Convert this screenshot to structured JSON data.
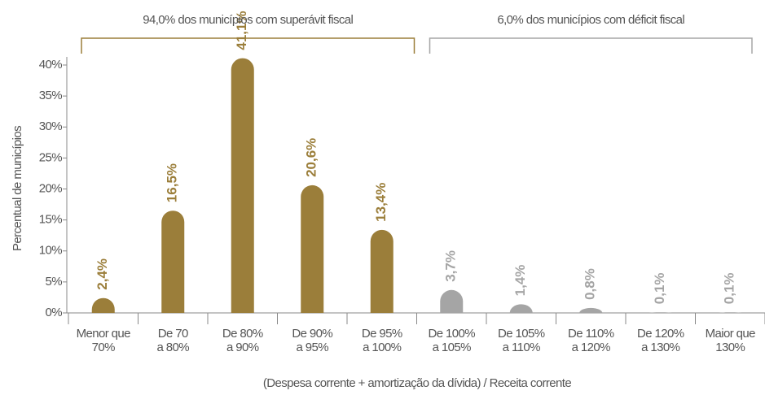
{
  "chart_data": {
    "type": "bar",
    "categories": [
      [
        "Menor que",
        "70%"
      ],
      [
        "De 70",
        "a 80%"
      ],
      [
        "De 80%",
        "a 90%"
      ],
      [
        "De 90%",
        "a 95%"
      ],
      [
        "De 95%",
        "a 100%"
      ],
      [
        "De 100%",
        "a 105%"
      ],
      [
        "De 105%",
        "a 110%"
      ],
      [
        "De 110%",
        "a 120%"
      ],
      [
        "De 120%",
        "a 130%"
      ],
      [
        "Maior que",
        "130%"
      ]
    ],
    "values": [
      2.4,
      16.5,
      41.1,
      20.6,
      13.4,
      3.7,
      1.4,
      0.8,
      0.1,
      0.1
    ],
    "value_labels": [
      "2,4%",
      "16,5%",
      "41,1%",
      "20,6%",
      "13,4%",
      "3,7%",
      "1,4%",
      "0,8%",
      "0,1%",
      "0,1%"
    ],
    "colors": [
      "#9b7e3a",
      "#9b7e3a",
      "#9b7e3a",
      "#9b7e3a",
      "#9b7e3a",
      "#a5a5a5",
      "#a5a5a5",
      "#a5a5a5",
      "#a5a5a5",
      "#a5a5a5"
    ],
    "ylim": [
      0,
      40
    ],
    "yticks": [
      {
        "value": 0,
        "label": "0%"
      },
      {
        "value": 5,
        "label": "5%"
      },
      {
        "value": 10,
        "label": "10%"
      },
      {
        "value": 15,
        "label": "15%"
      },
      {
        "value": 20,
        "label": "20%"
      },
      {
        "value": 25,
        "label": "25%"
      },
      {
        "value": 30,
        "label": "30%"
      },
      {
        "value": 35,
        "label": "35%"
      },
      {
        "value": 40,
        "label": "40%"
      }
    ],
    "y_label": "Percentual de municípios",
    "x_label": "(Despesa corrente + amortização da dívida) / Receita corrente",
    "annotations": [
      {
        "text": "94,0% dos municípios com superávit fiscal",
        "color": "#9b7e3a"
      },
      {
        "text": "6,0% dos municípios com déficit fiscal",
        "color": "#a5a5a5"
      }
    ]
  }
}
